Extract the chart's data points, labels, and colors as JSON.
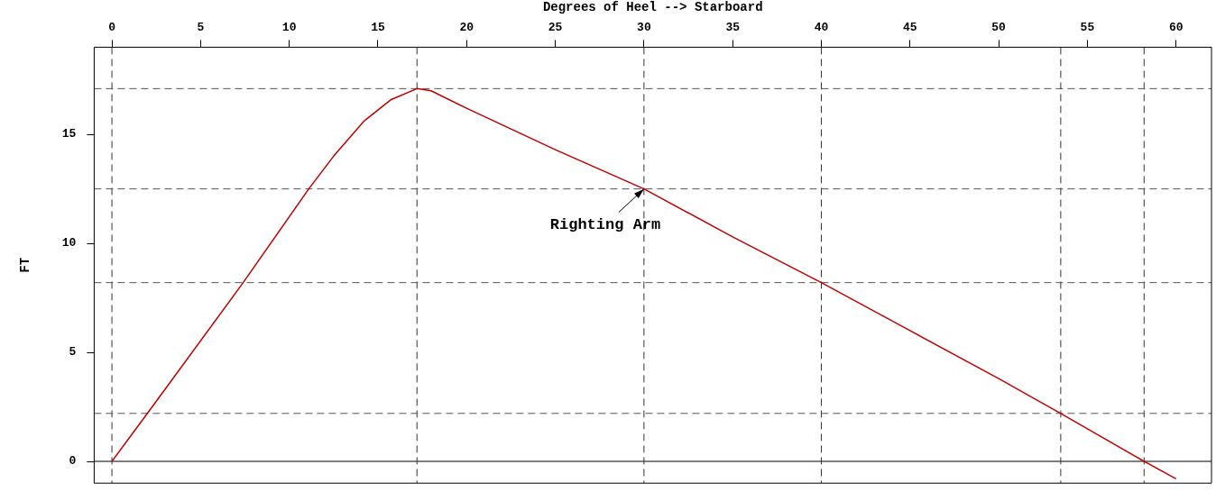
{
  "chart_data": {
    "type": "line",
    "xlabel": "Degrees of Heel --> Starboard",
    "ylabel": "FT",
    "x": [
      0,
      2,
      7.4,
      11.1,
      12.5,
      14.2,
      15.75,
      17.2,
      18,
      20,
      25,
      30,
      35,
      40,
      45,
      50,
      53.5,
      58.2,
      60
    ],
    "series": [
      {
        "color": "#c00000",
        "values": [
          0,
          2.2,
          8.2,
          12.5,
          14,
          15.6,
          16.6,
          17.1,
          17,
          16.2,
          14.3,
          12.5,
          10.3,
          8.2,
          6.0,
          3.8,
          2.2,
          0,
          -0.8
        ]
      }
    ],
    "xlim": [
      -1,
      62
    ],
    "xticks": [
      0,
      5,
      10,
      15,
      20,
      25,
      30,
      35,
      40,
      45,
      50,
      55,
      60
    ],
    "ylim": [
      -1,
      19
    ],
    "yticks": [
      0,
      5,
      10,
      15
    ],
    "ref_lines": [
      {
        "axis": "y",
        "value": 0,
        "line_style": "solid",
        "color": "#000000"
      },
      {
        "axis": "x",
        "value": 0,
        "line_style": "dashed",
        "color": "#333333"
      },
      {
        "axis": "x",
        "value": 17.2,
        "line_style": "dashed",
        "color": "#333333"
      },
      {
        "axis": "x",
        "value": 30,
        "line_style": "dashed",
        "color": "#333333"
      },
      {
        "axis": "x",
        "value": 40,
        "line_style": "dashed",
        "color": "#333333"
      },
      {
        "axis": "x",
        "value": 53.5,
        "line_style": "dashed",
        "color": "#333333"
      },
      {
        "axis": "x",
        "value": 58.2,
        "line_style": "dashed",
        "color": "#333333"
      },
      {
        "axis": "y",
        "value": 17.1,
        "line_style": "dashed",
        "color": "#555555"
      },
      {
        "axis": "y",
        "value": 12.5,
        "line_style": "dashed",
        "color": "#555555"
      },
      {
        "axis": "y",
        "value": 8.2,
        "line_style": "dashed",
        "color": "#555555"
      },
      {
        "axis": "y",
        "value": 2.2,
        "line_style": "dashed",
        "color": "#555555"
      }
    ],
    "annotations": [
      {
        "text": "Righting Arm",
        "x": 30,
        "y": 12.5
      }
    ],
    "grid": false,
    "legend": false,
    "marker": "none",
    "line_style": "solid"
  }
}
